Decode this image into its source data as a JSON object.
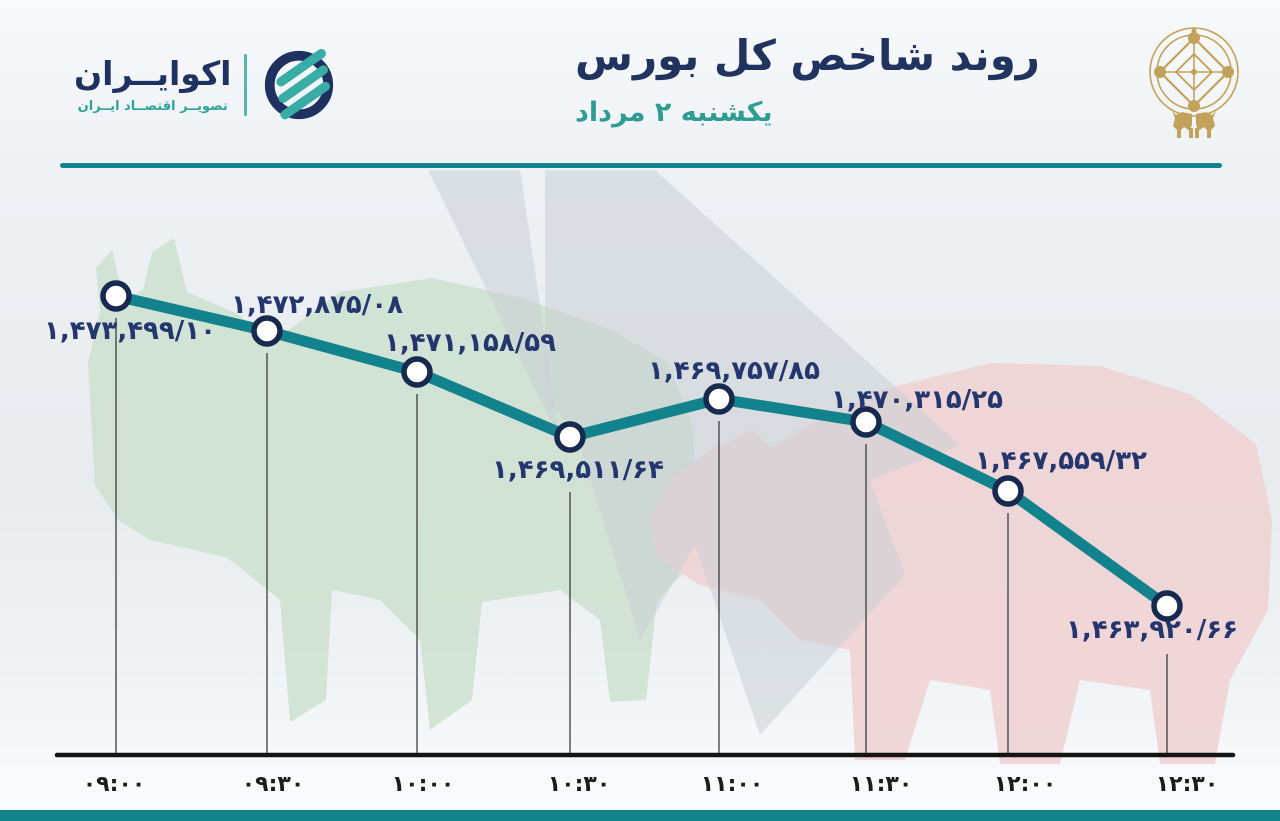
{
  "brand": {
    "name": "اکوایــران",
    "tagline": "تصویــر اقتصــاد ایــران"
  },
  "header": {
    "title": "روند شاخص کل بورس",
    "date": "یکشنبه ۲ مرداد"
  },
  "icons": {
    "brand_mark": "ecoiran-circle-stripes-logo",
    "emblem": "tehran-stock-exchange-gold-emblem",
    "background": [
      "bull-silhouette",
      "bear-silhouette",
      "lightning-bolt-shape"
    ]
  },
  "colors": {
    "teal": "#12828C",
    "navy_text": "#23366E",
    "title_navy": "#21345F",
    "date_teal": "#2E9C92",
    "gold": "#C2A25B",
    "axis_black": "#151515",
    "bull_green": "#CCE0CF",
    "bear_pink": "#EFD3D3",
    "bolt_gray": "#CBCFD6"
  },
  "chart_data": {
    "type": "line",
    "title": "روند شاخص کل بورس",
    "date_label": "یکشنبه ۲ مرداد",
    "categories": [
      "۰۹:۰۰",
      "۰۹:۳۰",
      "۱۰:۰۰",
      "۱۰:۳۰",
      "۱۱:۰۰",
      "۱۱:۳۰",
      "۱۲:۰۰",
      "۱۲:۳۰"
    ],
    "values": [
      1473499.1,
      1472875.08,
      1471158.59,
      1469511.64,
      1469757.85,
      1470315.25,
      1467559.32,
      1463920.66
    ],
    "point_labels": [
      "۱,۴۷۳,۴۹۹/۱۰",
      "۱,۴۷۲,۸۷۵/۰۸",
      "۱,۴۷۱,۱۵۸/۵۹",
      "۱,۴۶۹,۵۱۱/۶۴",
      "۱,۴۶۹,۷۵۷/۸۵",
      "۱,۴۷۰,۳۱۵/۲۵",
      "۱,۴۶۷,۵۵۹/۳۲",
      "۱,۴۶۳,۹۲۰/۶۶"
    ],
    "xlabel": "",
    "ylabel": "",
    "ylim": [
      1463000,
      1474000
    ],
    "grid": false,
    "legend": "none",
    "line_color": "#12828C",
    "marker_fill": "#FFFFFF",
    "marker_stroke": "#16294F",
    "label_color": "#23366E"
  }
}
